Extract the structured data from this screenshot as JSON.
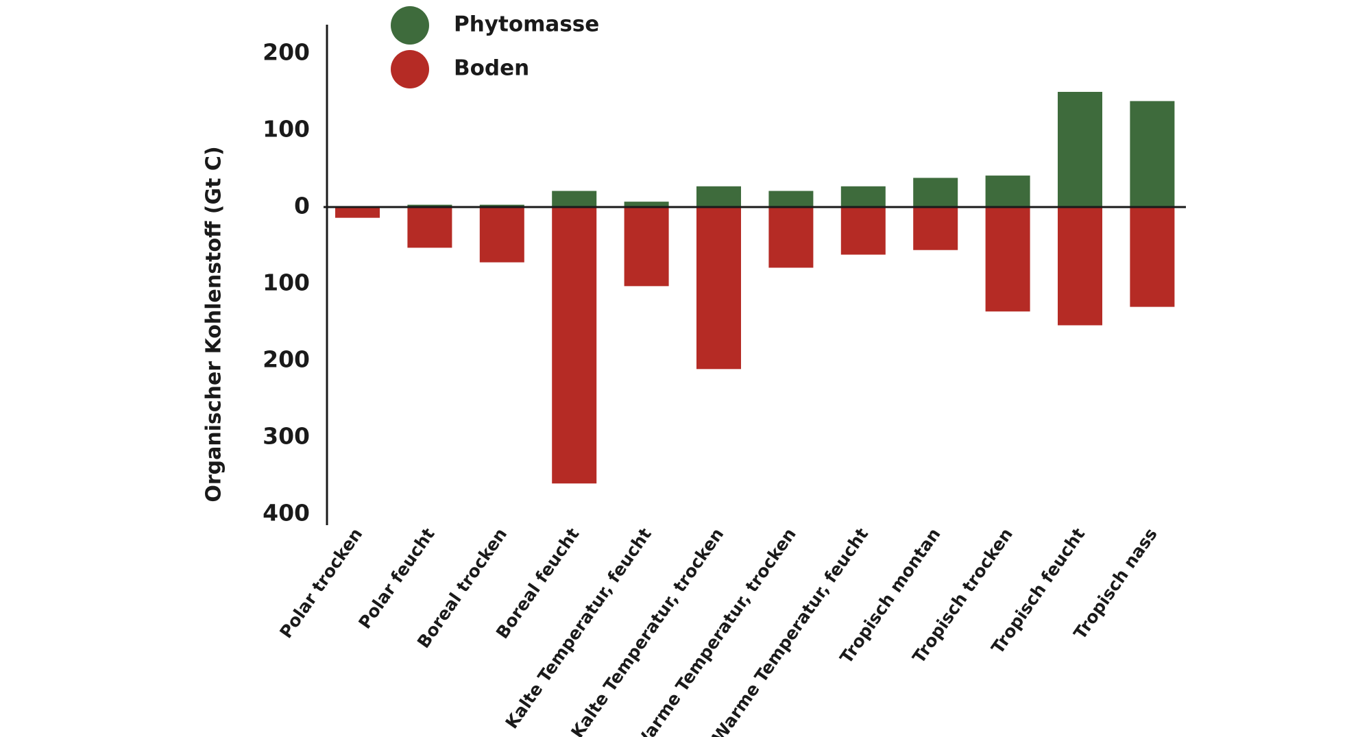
{
  "chart_data": {
    "type": "bar",
    "ylabel": "Organischer Kohlenstoff (Gt C)",
    "ylim": [
      -400,
      200
    ],
    "yticks": [
      {
        "value": 200,
        "label": "200"
      },
      {
        "value": 100,
        "label": "100"
      },
      {
        "value": 0,
        "label": "0"
      },
      {
        "value": -100,
        "label": "100"
      },
      {
        "value": -200,
        "label": "200"
      },
      {
        "value": -300,
        "label": "300"
      },
      {
        "value": -400,
        "label": "400"
      }
    ],
    "categories": [
      "Polar trocken",
      "Polar feucht",
      "Boreal trocken",
      "Boreal feucht",
      "Kalte Temperatur, feucht",
      "Kalte Temperatur, trocken",
      "Warme Temperatur, trocken",
      "Warme Temperatur, feucht",
      "Tropisch montan",
      "Tropisch trocken",
      "Tropisch feucht",
      "Tropisch nass"
    ],
    "series": [
      {
        "name": "Phytomasse",
        "color": "#3e6b3c",
        "values": [
          0,
          3,
          3,
          21,
          7,
          27,
          21,
          27,
          38,
          41,
          150,
          138
        ]
      },
      {
        "name": "Boden",
        "color": "#b52b25",
        "values": [
          -14,
          -53,
          -72,
          -360,
          -103,
          -211,
          -79,
          -62,
          -56,
          -136,
          -154,
          -130
        ]
      }
    ],
    "legend": "top"
  }
}
